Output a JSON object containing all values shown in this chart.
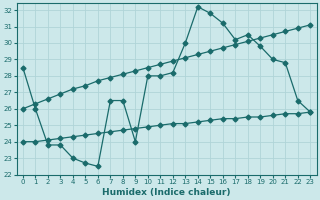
{
  "xlabel": "Humidex (Indice chaleur)",
  "bg_color": "#cce8ea",
  "line_color": "#1a6b6b",
  "grid_color": "#b0d4d8",
  "xlim": [
    -0.5,
    23.5
  ],
  "ylim": [
    22,
    32.4
  ],
  "xticks": [
    0,
    1,
    2,
    3,
    4,
    5,
    6,
    7,
    8,
    9,
    10,
    11,
    12,
    13,
    14,
    15,
    16,
    17,
    18,
    19,
    20,
    21,
    22,
    23
  ],
  "yticks": [
    22,
    23,
    24,
    25,
    26,
    27,
    28,
    29,
    30,
    31,
    32
  ],
  "line1_x": [
    0,
    1,
    2,
    3,
    4,
    5,
    6,
    7,
    8,
    9,
    10,
    11,
    12,
    13,
    14,
    15,
    16,
    17,
    18,
    19,
    20,
    21,
    22,
    23
  ],
  "line1_y": [
    28.5,
    26.0,
    23.8,
    23.8,
    23.0,
    22.7,
    22.5,
    26.5,
    26.5,
    24.0,
    28.0,
    28.0,
    28.2,
    30.0,
    32.2,
    31.8,
    31.2,
    30.2,
    30.5,
    29.8,
    29.0,
    28.8,
    26.5,
    25.8
  ],
  "line2_x": [
    0,
    1,
    2,
    3,
    4,
    5,
    6,
    7,
    8,
    9,
    10,
    11,
    12,
    13,
    14,
    15,
    16,
    17,
    18,
    19,
    20,
    21,
    22,
    23
  ],
  "line2_y": [
    26.0,
    26.3,
    26.6,
    26.9,
    27.2,
    27.4,
    27.7,
    27.9,
    28.1,
    28.3,
    28.5,
    28.7,
    28.9,
    29.1,
    29.3,
    29.5,
    29.7,
    29.9,
    30.1,
    30.3,
    30.5,
    30.7,
    30.9,
    31.1
  ],
  "line3_x": [
    0,
    1,
    2,
    3,
    4,
    5,
    6,
    7,
    8,
    9,
    10,
    11,
    12,
    13,
    14,
    15,
    16,
    17,
    18,
    19,
    20,
    21,
    22,
    23
  ],
  "line3_y": [
    24.0,
    24.0,
    24.1,
    24.2,
    24.3,
    24.4,
    24.5,
    24.6,
    24.7,
    24.8,
    24.9,
    25.0,
    25.1,
    25.1,
    25.2,
    25.3,
    25.4,
    25.4,
    25.5,
    25.5,
    25.6,
    25.7,
    25.7,
    25.8
  ]
}
